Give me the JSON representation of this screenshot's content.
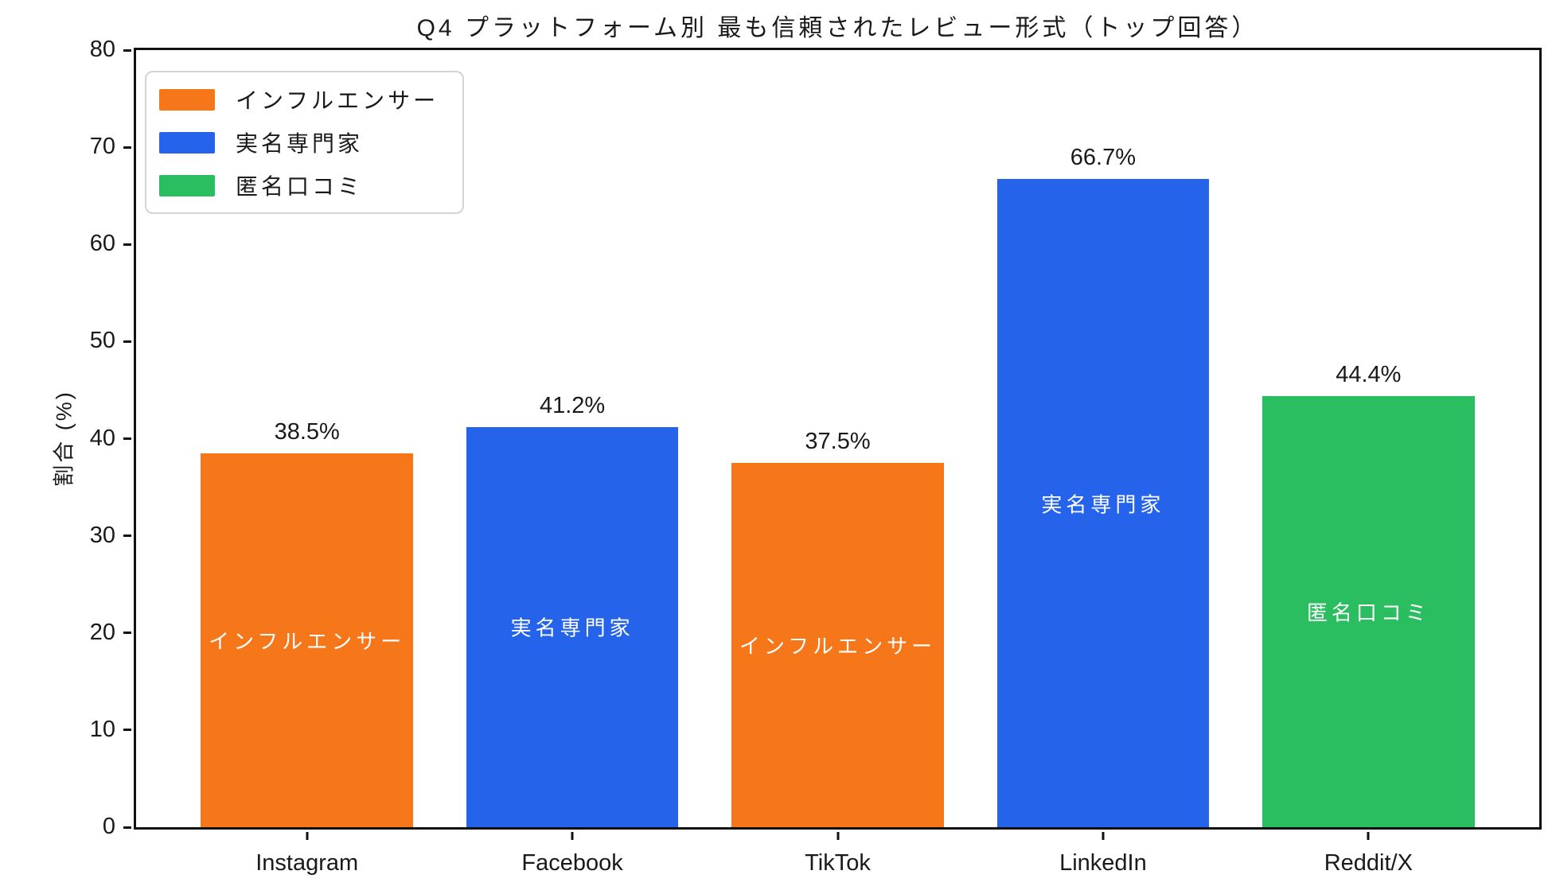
{
  "title": "Q4 プラットフォーム別 最も信頼されたレビュー形式（トップ回答）",
  "chart_data": {
    "type": "bar",
    "title": "Q4 プラットフォーム別 最も信頼されたレビュー形式（トップ回答）",
    "xlabel": "",
    "ylabel": "割合 (%)",
    "ylim": [
      0,
      80
    ],
    "yticks": [
      0,
      10,
      20,
      30,
      40,
      50,
      60,
      70,
      80
    ],
    "grid": false,
    "categories": [
      "Instagram",
      "Facebook",
      "TikTok",
      "LinkedIn",
      "Reddit/X"
    ],
    "values": [
      38.5,
      41.2,
      37.5,
      66.7,
      44.4
    ],
    "value_labels": [
      "38.5%",
      "41.2%",
      "37.5%",
      "66.7%",
      "44.4%"
    ],
    "bar_top_answers": [
      "インフルエンサー",
      "実名専門家",
      "インフルエンサー",
      "実名専門家",
      "匿名口コミ"
    ],
    "bar_colors": [
      "#F6761A",
      "#2563EB",
      "#2BBE60"
    ],
    "bar_color_index": [
      0,
      1,
      0,
      1,
      2
    ],
    "legend": {
      "position": "upper-left",
      "entries": [
        {
          "label": "インフルエンサー",
          "color": "#F6761A"
        },
        {
          "label": "実名専門家",
          "color": "#2563EB"
        },
        {
          "label": "匿名口コミ",
          "color": "#2BBE60"
        }
      ]
    },
    "colors": {
      "influencer_orange": "#F6761A",
      "named_expert_blue": "#2563EB",
      "anonymous_review_green": "#2BBE60",
      "axis_and_text": "#1a1a1a",
      "background": "#ffffff"
    }
  }
}
